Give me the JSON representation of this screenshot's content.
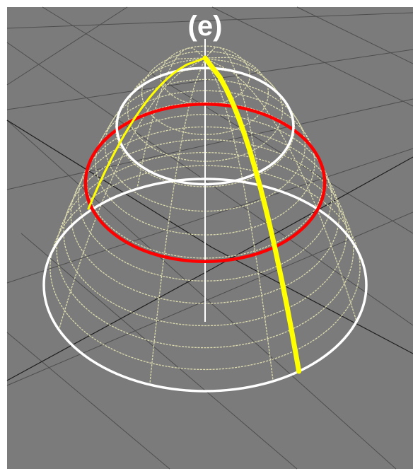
{
  "figure": {
    "panel_label": "(e)",
    "colors": {
      "ground": "#7b7b7b",
      "ground_grid": "#4e4e4e",
      "ground_grid_dark": "#1e1e1e",
      "wireframe": "#e8e6b4",
      "axis": "#ffffff",
      "profile_curve": "#ffff00",
      "middle_ring": "#ff0000",
      "top_ring": "#ffffff",
      "base_ring": "#ffffff",
      "label": "#ffffff"
    },
    "elements": {
      "ground_plane": "ground-plane",
      "wireframe_rings": 13,
      "wireframe_meridians": 8,
      "highlighted_rings": [
        "top-ring",
        "middle-ring",
        "base-ring"
      ],
      "profile_curve": "profile-curve",
      "vertical_axis": "vertical-axis"
    }
  }
}
